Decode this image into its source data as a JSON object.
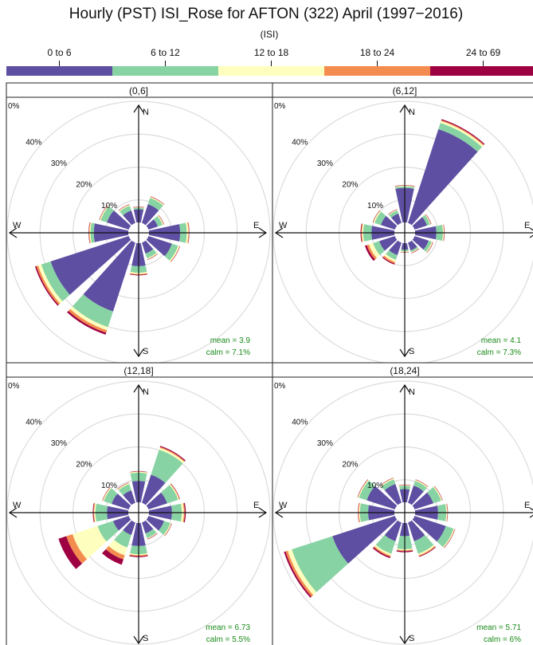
{
  "title": "Hourly (PST) ISI_Rose for AFTON (322) April (1997−2016)",
  "legend": {
    "title": "(ISI)",
    "bins": [
      "0 to 6",
      "6 to 12",
      "12 to 18",
      "18 to 24",
      "24 to 69"
    ],
    "colors": [
      "#5e4fa2",
      "#88d3a4",
      "#feffbe",
      "#f58c4f",
      "#9e0142"
    ]
  },
  "compass": {
    "n": "N",
    "e": "E",
    "s": "S",
    "w": "W"
  },
  "chart_data": [
    {
      "type": "windrose",
      "panel": "(0,6]",
      "radial_ticks": [
        "0%",
        "10%",
        "20%",
        "30%",
        "40%"
      ],
      "rmax": 40,
      "mean_label": "mean = 3.9",
      "calm_label": "calm = 7.1%",
      "directions": [
        0,
        30,
        60,
        90,
        120,
        150,
        180,
        210,
        240,
        270,
        300,
        330
      ],
      "cumulative": [
        [
          4,
          4.5,
          4.6,
          4.7,
          4.8
        ],
        [
          6,
          8,
          8.3,
          8.4,
          8.5
        ],
        [
          3,
          4.5,
          4.8,
          4.9,
          5
        ],
        [
          9.5,
          11.5,
          12,
          12.2,
          12.3
        ],
        [
          7.5,
          9.5,
          9.9,
          10,
          10.1
        ],
        [
          3.5,
          5,
          5.3,
          5.4,
          5.5
        ],
        [
          7,
          9,
          9.4,
          9.6,
          9.8
        ],
        [
          22,
          27,
          28,
          28.8,
          29.4
        ],
        [
          25,
          28,
          29,
          29.6,
          30
        ],
        [
          10.5,
          11.5,
          11.8,
          12,
          12.1
        ],
        [
          7,
          9,
          9.3,
          9.4,
          9.5
        ],
        [
          4,
          5.5,
          5.8,
          5.9,
          6
        ]
      ]
    },
    {
      "type": "windrose",
      "panel": "(6,12]",
      "radial_ticks": [
        "0%",
        "10%",
        "20%",
        "30%",
        "40%"
      ],
      "rmax": 40,
      "mean_label": "mean = 4.1",
      "calm_label": "calm = 7.3%",
      "directions": [
        0,
        30,
        60,
        90,
        120,
        150,
        180,
        210,
        240,
        270,
        300,
        330
      ],
      "cumulative": [
        [
          10.5,
          11,
          11.2,
          11.3,
          11.4
        ],
        [
          30,
          32,
          32.6,
          32.9,
          33.2
        ],
        [
          4,
          5,
          5.2,
          5.3,
          5.4
        ],
        [
          6.5,
          8.5,
          8.8,
          8.9,
          9
        ],
        [
          4.5,
          5.5,
          5.8,
          5.9,
          6
        ],
        [
          2.5,
          3,
          3.2,
          3.3,
          3.4
        ],
        [
          2,
          2.5,
          2.7,
          2.8,
          2.9
        ],
        [
          4,
          5.5,
          6.2,
          6.7,
          7
        ],
        [
          5,
          7,
          8.3,
          9,
          9.6
        ],
        [
          7,
          9.5,
          9.9,
          10.1,
          10.3
        ],
        [
          4.5,
          6.5,
          6.9,
          7,
          7.1
        ],
        [
          3,
          4,
          4.2,
          4.3,
          4.4
        ]
      ]
    },
    {
      "type": "windrose",
      "panel": "(12,18]",
      "radial_ticks": [
        "0%",
        "10%",
        "20%",
        "30%",
        "40%"
      ],
      "rmax": 40,
      "mean_label": "mean = 6.73",
      "calm_label": "calm = 5.5%",
      "directions": [
        0,
        30,
        60,
        90,
        120,
        150,
        180,
        210,
        240,
        270,
        300,
        330
      ],
      "cumulative": [
        [
          6.5,
          9,
          9.3,
          9.4,
          9.5
        ],
        [
          9,
          17,
          17.6,
          17.9,
          18.2
        ],
        [
          6,
          9.5,
          9.8,
          10,
          10.1
        ],
        [
          7,
          10,
          10.6,
          10.9,
          11.2
        ],
        [
          5,
          7,
          7.3,
          7.4,
          7.5
        ],
        [
          3.5,
          5,
          5.2,
          5.3,
          5.4
        ],
        [
          7,
          9.5,
          9.8,
          10.1,
          10.4
        ],
        [
          4,
          8,
          10.5,
          11.8,
          13.5
        ],
        [
          5,
          10,
          18,
          20,
          22.5
        ],
        [
          6.5,
          10,
          10.4,
          10.6,
          10.8
        ],
        [
          5.5,
          8,
          8.3,
          8.4,
          8.5
        ],
        [
          4,
          6,
          6.3,
          6.4,
          6.5
        ]
      ]
    },
    {
      "type": "windrose",
      "panel": "(18,24]",
      "radial_ticks": [
        "0%",
        "10%",
        "20%",
        "30%",
        "40%"
      ],
      "rmax": 40,
      "mean_label": "mean = 5.71",
      "calm_label": "calm = 6%",
      "directions": [
        0,
        30,
        60,
        90,
        120,
        150,
        180,
        210,
        240,
        270,
        300,
        330
      ],
      "cumulative": [
        [
          4,
          5,
          5.2,
          5.3,
          5.4
        ],
        [
          5.5,
          7,
          7.3,
          7.4,
          7.5
        ],
        [
          6,
          8.5,
          8.8,
          8.9,
          9
        ],
        [
          7,
          9.5,
          9.8,
          9.9,
          10
        ],
        [
          10,
          12.5,
          12.8,
          12.9,
          13
        ],
        [
          6,
          10,
          10.5,
          10.8,
          11
        ],
        [
          4,
          8,
          8.3,
          8.6,
          8.9
        ],
        [
          6,
          10,
          10.6,
          11,
          11.4
        ],
        [
          20,
          33,
          34.3,
          35,
          35.5
        ],
        [
          8,
          10.5,
          10.8,
          11,
          11.1
        ],
        [
          9,
          11.5,
          11.8,
          11.9,
          12
        ],
        [
          6,
          7.5,
          7.8,
          7.9,
          8
        ]
      ]
    }
  ]
}
